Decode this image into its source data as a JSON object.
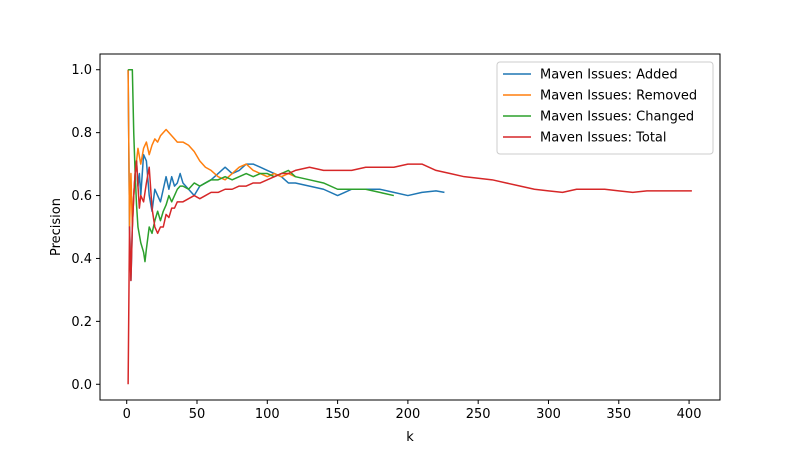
{
  "chart_data": {
    "type": "line",
    "title": "",
    "xlabel": "k",
    "ylabel": "Precision",
    "xlim": [
      -19,
      422
    ],
    "ylim": [
      -0.05,
      1.05
    ],
    "xticks": [
      0,
      50,
      100,
      150,
      200,
      250,
      300,
      350,
      400
    ],
    "yticks": [
      0.0,
      0.2,
      0.4,
      0.6,
      0.8,
      1.0
    ],
    "xtick_labels": [
      "0",
      "50",
      "100",
      "150",
      "200",
      "250",
      "300",
      "350",
      "400"
    ],
    "ytick_labels": [
      "0.0",
      "0.2",
      "0.4",
      "0.6",
      "0.8",
      "1.0"
    ],
    "grid": false,
    "legend_position": "top-right",
    "series": [
      {
        "name": "Maven Issues: Added",
        "color": "#1f77b4",
        "x": [
          1,
          2,
          3,
          4,
          5,
          6,
          7,
          8,
          9,
          10,
          12,
          14,
          16,
          18,
          20,
          22,
          24,
          26,
          28,
          30,
          32,
          34,
          36,
          38,
          40,
          44,
          48,
          52,
          56,
          60,
          65,
          70,
          75,
          80,
          85,
          90,
          95,
          100,
          105,
          110,
          115,
          120,
          130,
          140,
          150,
          155,
          160,
          170,
          180,
          190,
          200,
          210,
          220,
          226
        ],
        "y": [
          1.0,
          0.5,
          0.33,
          0.5,
          0.6,
          0.67,
          0.71,
          0.63,
          0.67,
          0.6,
          0.73,
          0.71,
          0.6,
          0.55,
          0.62,
          0.6,
          0.58,
          0.62,
          0.66,
          0.62,
          0.66,
          0.63,
          0.64,
          0.67,
          0.64,
          0.62,
          0.6,
          0.63,
          0.64,
          0.65,
          0.67,
          0.69,
          0.67,
          0.68,
          0.7,
          0.7,
          0.69,
          0.68,
          0.67,
          0.66,
          0.64,
          0.64,
          0.63,
          0.62,
          0.6,
          0.61,
          0.62,
          0.62,
          0.62,
          0.61,
          0.6,
          0.61,
          0.615,
          0.61
        ]
      },
      {
        "name": "Maven Issues: Removed",
        "color": "#ff7f0e",
        "x": [
          1,
          2,
          3,
          4,
          5,
          6,
          7,
          8,
          10,
          12,
          14,
          16,
          18,
          20,
          22,
          24,
          26,
          28,
          30,
          32,
          34,
          36,
          38,
          40,
          44,
          48,
          52,
          56,
          60,
          65,
          70,
          75,
          80,
          85,
          90,
          95,
          100,
          105,
          110,
          115,
          120
        ],
        "y": [
          1.0,
          0.5,
          0.67,
          0.5,
          0.6,
          0.67,
          0.71,
          0.75,
          0.7,
          0.75,
          0.77,
          0.73,
          0.76,
          0.78,
          0.77,
          0.79,
          0.8,
          0.81,
          0.8,
          0.79,
          0.78,
          0.77,
          0.77,
          0.77,
          0.76,
          0.74,
          0.71,
          0.69,
          0.68,
          0.66,
          0.65,
          0.67,
          0.69,
          0.7,
          0.68,
          0.67,
          0.66,
          0.67,
          0.66,
          0.67,
          0.66
        ]
      },
      {
        "name": "Maven Issues: Changed",
        "color": "#2ca02c",
        "x": [
          1,
          2,
          3,
          4,
          5,
          6,
          7,
          8,
          10,
          12,
          13,
          14,
          16,
          18,
          20,
          22,
          24,
          26,
          28,
          30,
          32,
          34,
          36,
          38,
          40,
          44,
          48,
          52,
          56,
          60,
          65,
          70,
          75,
          80,
          85,
          90,
          95,
          100,
          105,
          110,
          115,
          120,
          130,
          140,
          150,
          160,
          170,
          180,
          190
        ],
        "y": [
          1.0,
          1.0,
          1.0,
          1.0,
          0.8,
          0.67,
          0.57,
          0.5,
          0.45,
          0.42,
          0.39,
          0.43,
          0.5,
          0.48,
          0.52,
          0.55,
          0.52,
          0.55,
          0.57,
          0.6,
          0.58,
          0.6,
          0.62,
          0.63,
          0.63,
          0.62,
          0.64,
          0.63,
          0.64,
          0.65,
          0.65,
          0.66,
          0.65,
          0.66,
          0.67,
          0.66,
          0.67,
          0.67,
          0.66,
          0.67,
          0.68,
          0.66,
          0.65,
          0.64,
          0.62,
          0.62,
          0.62,
          0.61,
          0.6
        ]
      },
      {
        "name": "Maven Issues: Total",
        "color": "#d62728",
        "x": [
          1,
          2,
          3,
          4,
          5,
          6,
          7,
          8,
          9,
          10,
          12,
          14,
          16,
          18,
          20,
          22,
          24,
          26,
          28,
          30,
          32,
          34,
          36,
          38,
          40,
          44,
          48,
          52,
          56,
          60,
          65,
          70,
          75,
          80,
          85,
          90,
          95,
          100,
          105,
          110,
          115,
          120,
          130,
          140,
          150,
          160,
          170,
          180,
          190,
          200,
          210,
          220,
          230,
          240,
          250,
          260,
          270,
          280,
          290,
          300,
          310,
          320,
          330,
          340,
          350,
          360,
          370,
          380,
          390,
          402
        ],
        "y": [
          0.0,
          0.5,
          0.33,
          0.5,
          0.6,
          0.67,
          0.71,
          0.63,
          0.56,
          0.6,
          0.58,
          0.64,
          0.69,
          0.56,
          0.5,
          0.48,
          0.5,
          0.5,
          0.54,
          0.53,
          0.56,
          0.56,
          0.58,
          0.58,
          0.58,
          0.59,
          0.6,
          0.59,
          0.6,
          0.61,
          0.61,
          0.62,
          0.62,
          0.63,
          0.63,
          0.64,
          0.64,
          0.65,
          0.66,
          0.67,
          0.67,
          0.68,
          0.69,
          0.68,
          0.68,
          0.68,
          0.69,
          0.69,
          0.69,
          0.7,
          0.7,
          0.68,
          0.67,
          0.66,
          0.655,
          0.65,
          0.64,
          0.63,
          0.62,
          0.615,
          0.61,
          0.62,
          0.62,
          0.62,
          0.615,
          0.61,
          0.615,
          0.615,
          0.615,
          0.615
        ]
      }
    ]
  }
}
